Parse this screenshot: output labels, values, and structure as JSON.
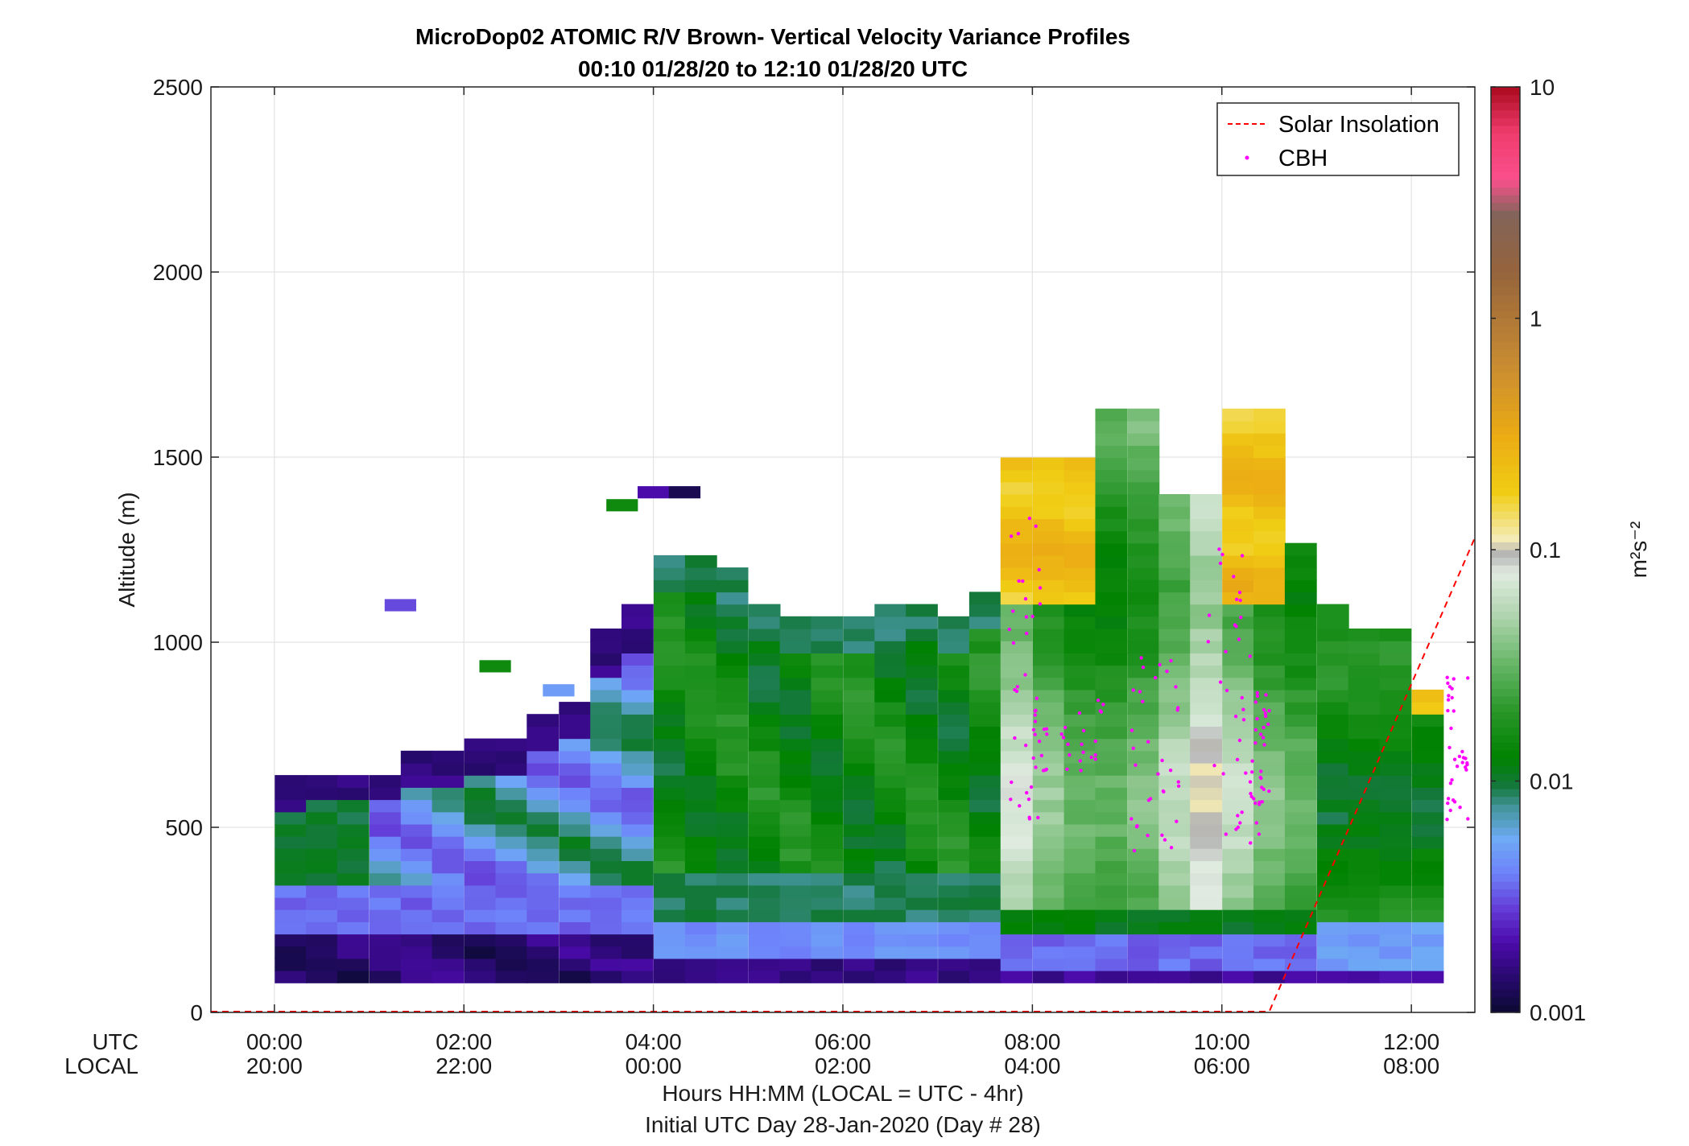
{
  "chart_data": {
    "type": "heatmap",
    "title_line1": "MicroDop02 ATOMIC R/V Brown- Vertical Velocity Variance Profiles",
    "title_line2": "00:10 01/28/20 to 12:10 01/28/20  UTC",
    "ylabel": "Altitude (m)",
    "xlabel_line1": "Hours HH:MM  (LOCAL = UTC - 4hr)",
    "xlabel_line2": "Initial UTC Day 28-Jan-2020 (Day # 28)",
    "x_row_label_utc": "UTC",
    "x_row_label_local": "LOCAL",
    "xlim_hours": [
      -0.67,
      12.67
    ],
    "ylim": [
      0,
      2500
    ],
    "x_ticks": [
      {
        "hour": 0,
        "utc": "00:00",
        "local": "20:00"
      },
      {
        "hour": 2,
        "utc": "02:00",
        "local": "22:00"
      },
      {
        "hour": 4,
        "utc": "04:00",
        "local": "00:00"
      },
      {
        "hour": 6,
        "utc": "06:00",
        "local": "02:00"
      },
      {
        "hour": 8,
        "utc": "08:00",
        "local": "04:00"
      },
      {
        "hour": 10,
        "utc": "10:00",
        "local": "06:00"
      },
      {
        "hour": 12,
        "utc": "12:00",
        "local": "08:00"
      }
    ],
    "y_ticks": [
      {
        "value": 0,
        "label": "0"
      },
      {
        "value": 500,
        "label": "500"
      },
      {
        "value": 1000,
        "label": "1000"
      },
      {
        "value": 1500,
        "label": "1500"
      },
      {
        "value": 2000,
        "label": "2000"
      },
      {
        "value": 2500,
        "label": "2500"
      }
    ],
    "grid": true,
    "colorbar": {
      "scale": "log",
      "range": [
        0.001,
        10
      ],
      "unit_label": "m²s⁻²",
      "ticks": [
        {
          "value": 0.001,
          "label": "0.001"
        },
        {
          "value": 0.01,
          "label": "0.01"
        },
        {
          "value": 0.1,
          "label": "0.1"
        },
        {
          "value": 1,
          "label": "1"
        },
        {
          "value": 10,
          "label": "10"
        }
      ]
    },
    "legend": {
      "placement": "top-right",
      "entries": [
        {
          "label": "Solar Insolation",
          "style": "dashed-line",
          "color": "#ff0000"
        },
        {
          "label": "CBH",
          "style": "dots",
          "color": "#ff00ff"
        }
      ]
    },
    "heatmap": {
      "time_step_hours": 0.333,
      "range_gate_m": 33,
      "columns": [
        {
          "hour": 0.17,
          "top": 610
        },
        {
          "hour": 0.5,
          "top": 640
        },
        {
          "hour": 0.83,
          "top": 640
        },
        {
          "hour": 1.17,
          "top": 640
        },
        {
          "hour": 1.5,
          "top": 675
        },
        {
          "hour": 1.83,
          "top": 675
        },
        {
          "hour": 2.17,
          "top": 710
        },
        {
          "hour": 2.5,
          "top": 710
        },
        {
          "hour": 2.83,
          "top": 775
        },
        {
          "hour": 3.17,
          "top": 810
        },
        {
          "hour": 3.5,
          "top": 1005
        },
        {
          "hour": 3.83,
          "top": 1075
        },
        {
          "hour": 4.17,
          "top": 1215
        },
        {
          "hour": 4.5,
          "top": 1215
        },
        {
          "hour": 4.83,
          "top": 1180
        },
        {
          "hour": 5.17,
          "top": 1080
        },
        {
          "hour": 5.5,
          "top": 1050
        },
        {
          "hour": 5.83,
          "top": 1050
        },
        {
          "hour": 6.17,
          "top": 1050
        },
        {
          "hour": 6.5,
          "top": 1085
        },
        {
          "hour": 6.83,
          "top": 1085
        },
        {
          "hour": 7.17,
          "top": 1050
        },
        {
          "hour": 7.5,
          "top": 1115
        },
        {
          "hour": 7.83,
          "top": 1485
        },
        {
          "hour": 8.17,
          "top": 1485
        },
        {
          "hour": 8.5,
          "top": 1485
        },
        {
          "hour": 8.83,
          "top": 1620
        },
        {
          "hour": 9.17,
          "top": 1620
        },
        {
          "hour": 9.5,
          "top": 1385
        },
        {
          "hour": 9.83,
          "top": 1385
        },
        {
          "hour": 10.17,
          "top": 1620
        },
        {
          "hour": 10.5,
          "top": 1620
        },
        {
          "hour": 10.83,
          "top": 1255
        },
        {
          "hour": 11.17,
          "top": 1085
        },
        {
          "hour": 11.5,
          "top": 1020
        },
        {
          "hour": 11.83,
          "top": 1020
        },
        {
          "hour": 12.17,
          "top": 850
        }
      ],
      "isolated_cells": [
        {
          "hour": 1.33,
          "alt": 1100,
          "variance": 0.003
        },
        {
          "hour": 2.33,
          "alt": 935,
          "variance": 0.015
        },
        {
          "hour": 3.0,
          "alt": 870,
          "variance": 0.005
        },
        {
          "hour": 3.67,
          "alt": 1370,
          "variance": 0.015
        },
        {
          "hour": 4.0,
          "alt": 1405,
          "variance": 0.002
        },
        {
          "hour": 4.33,
          "alt": 1405,
          "variance": 0.0012
        }
      ]
    }
  }
}
